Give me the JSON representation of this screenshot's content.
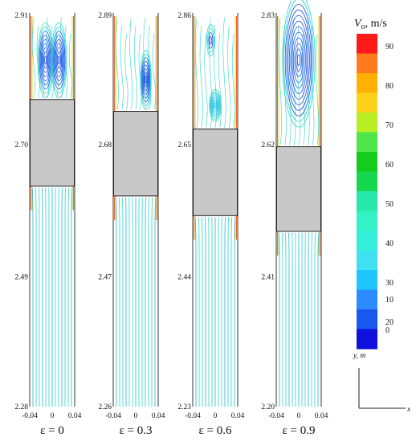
{
  "panels": [
    {
      "id": "eps0",
      "caption": "ε = 0",
      "y_ticks": [
        "2.91",
        "2.70",
        "2.49",
        "2.28"
      ],
      "x_ticks": [
        "-0.04",
        "0",
        "0.04"
      ],
      "block_frac": [
        0.22,
        0.44
      ],
      "vortices": [
        {
          "cx": -0.012,
          "cy": 0.12,
          "rx": 0.17,
          "ry": 0.095,
          "color": "#1f55e6",
          "rings": 9
        },
        {
          "cx": 0.012,
          "cy": 0.12,
          "rx": 0.17,
          "ry": 0.095,
          "color": "#1f55e6",
          "rings": 9
        }
      ]
    },
    {
      "id": "eps03",
      "caption": "ε = 0.3",
      "y_ticks": [
        "2.89",
        "2.68",
        "2.47",
        "2.26"
      ],
      "x_ticks": [
        "-0.04",
        "0",
        "0.04"
      ],
      "block_frac": [
        0.25,
        0.465
      ],
      "vortices": [
        {
          "cx": 0.018,
          "cy": 0.17,
          "rx": 0.12,
          "ry": 0.075,
          "color": "#1f55e6",
          "rings": 8
        }
      ]
    },
    {
      "id": "eps06",
      "caption": "ε = 0.6",
      "y_ticks": [
        "2.86",
        "2.65",
        "2.44",
        "2.23"
      ],
      "x_ticks": [
        "-0.04",
        "0",
        "0.04"
      ],
      "block_frac": [
        0.295,
        0.515
      ],
      "vortices": [
        {
          "cx": 0.0,
          "cy": 0.235,
          "rx": 0.13,
          "ry": 0.04,
          "color": "#22c0e8",
          "rings": 8
        },
        {
          "cx": -0.008,
          "cy": 0.07,
          "rx": 0.09,
          "ry": 0.04,
          "color": "#1f55e6",
          "rings": 4
        }
      ]
    },
    {
      "id": "eps09",
      "caption": "ε = 0.9",
      "y_ticks": [
        "2.83",
        "2.62",
        "2.41",
        "2.20"
      ],
      "x_ticks": [
        "-0.04",
        "0",
        "0.04"
      ],
      "block_frac": [
        0.34,
        0.555
      ],
      "vortices": [
        {
          "cx": 0.0,
          "cy": 0.12,
          "rx": 0.36,
          "ry": 0.17,
          "color": "#1f55e6",
          "rings": 12
        }
      ]
    }
  ],
  "legend": {
    "title_symbol": "V",
    "title_sub": "o",
    "title_unit": ", m/s",
    "levels": [
      {
        "label": "90",
        "color": "#ff1a1a"
      },
      {
        "label": "",
        "color": "#ff7a1a"
      },
      {
        "label": "80",
        "color": "#ffb000"
      },
      {
        "label": "",
        "color": "#ffd21a"
      },
      {
        "label": "70",
        "color": "#b8ef24"
      },
      {
        "label": "",
        "color": "#4ee64a"
      },
      {
        "label": "60",
        "color": "#14cc1e"
      },
      {
        "label": "",
        "color": "#16d84e"
      },
      {
        "label": "50",
        "color": "#26e8a8"
      },
      {
        "label": "",
        "color": "#34f2c6"
      },
      {
        "label": "40",
        "color": "#34f0d8"
      },
      {
        "label": "",
        "color": "#3ee0f2"
      },
      {
        "label": "30",
        "color": "#1ec6ff"
      },
      {
        "label": "",
        "color": "#2c8cff"
      },
      {
        "label": "20",
        "color": "#1858ee"
      },
      {
        "label": "",
        "color": "#1010dc"
      }
    ],
    "bottom_labels": [
      "10",
      "0"
    ]
  },
  "axes_indicator": {
    "y_label": "y, m",
    "x_label": "x"
  },
  "colors": {
    "block_fill": "#c8c8c8",
    "streamline": "#2ad4c8",
    "streamline_dark": "#1fb5d6",
    "wall_hot": "#f06c2a",
    "wall_warm": "#e8d43a"
  }
}
